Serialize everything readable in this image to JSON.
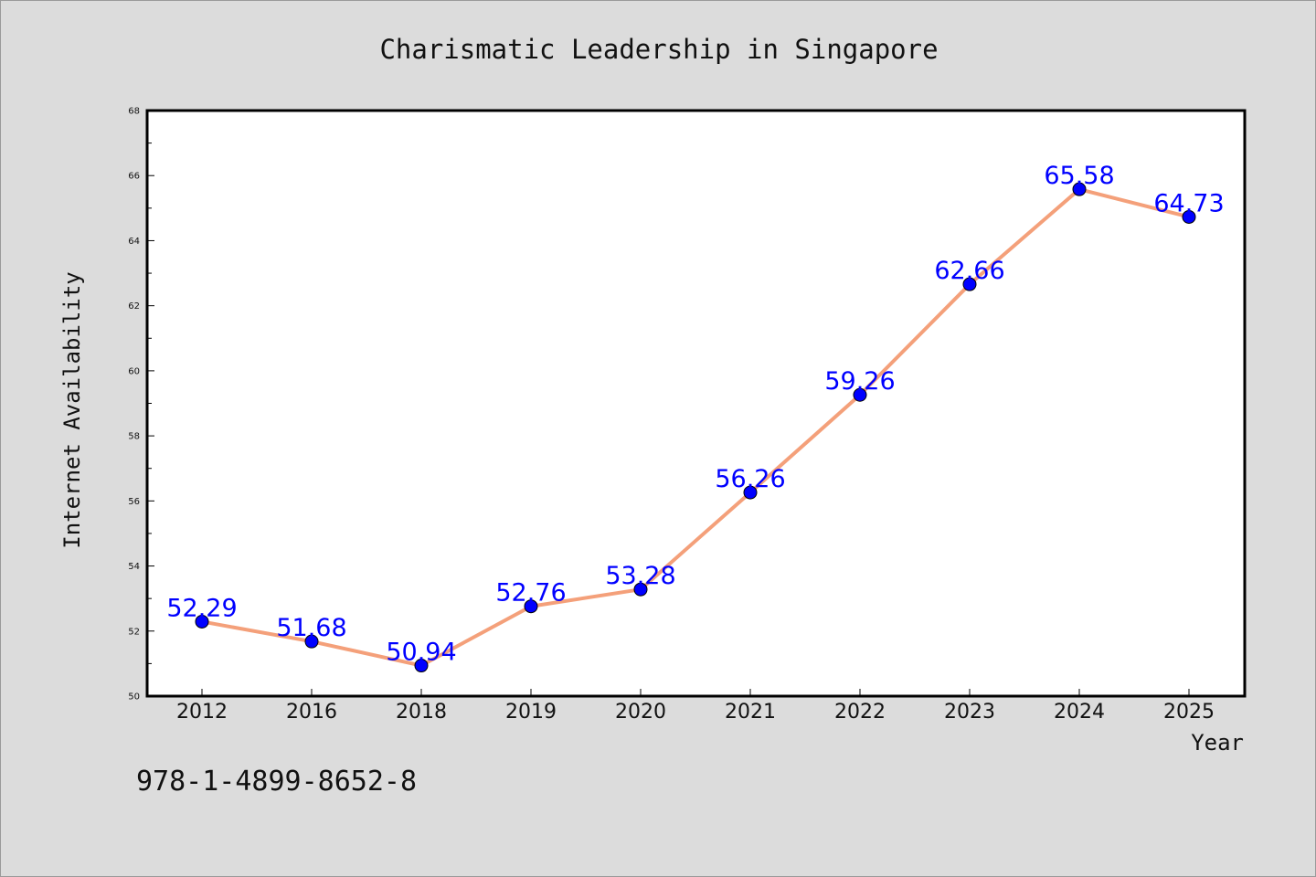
{
  "chart_data": {
    "type": "line",
    "title": "Charismatic Leadership in Singapore",
    "xlabel": "Year",
    "ylabel": "Internet Availability",
    "categories": [
      "2012",
      "2016",
      "2018",
      "2019",
      "2020",
      "2021",
      "2022",
      "2023",
      "2024",
      "2025"
    ],
    "series": [
      {
        "values": [
          52.29,
          51.68,
          50.94,
          52.76,
          53.28,
          56.26,
          59.26,
          62.66,
          65.58,
          64.73
        ],
        "line_color": "#f4a07a",
        "marker_color": "#0000ff",
        "label_color": "#0000ff"
      }
    ],
    "ylim": [
      50,
      68
    ],
    "yticks": [
      "50",
      "52",
      "54",
      "56",
      "58",
      "60",
      "62",
      "64",
      "66",
      "68"
    ],
    "grid": false,
    "legend": "none"
  },
  "footer": {
    "isbn": "978-1-4899-8652-8"
  }
}
